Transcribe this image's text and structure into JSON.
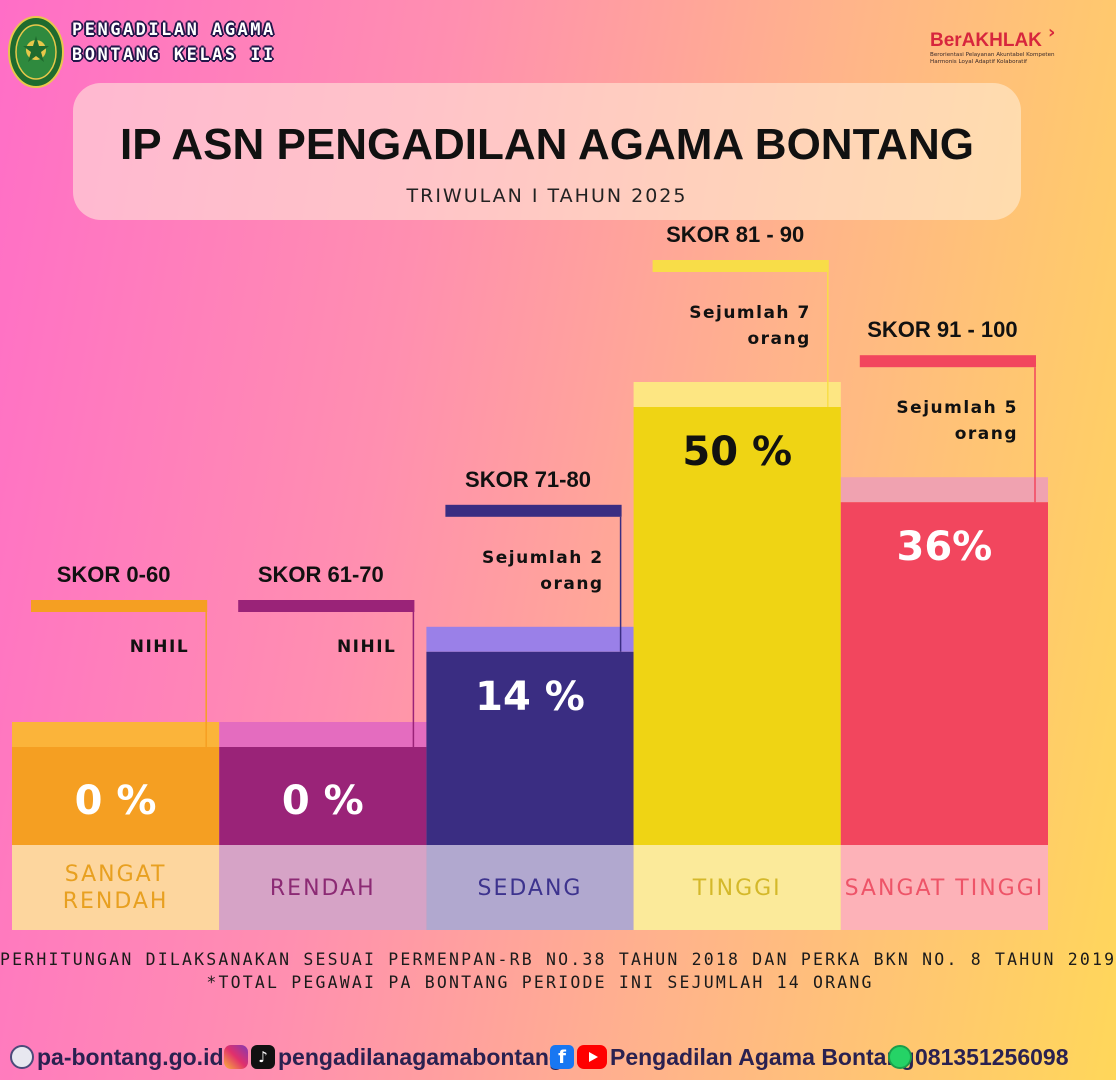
{
  "header": {
    "org_line1": "PENGADILAN AGAMA",
    "org_line2": "BONTANG KELAS II",
    "logo_icon": "court-emblem-icon",
    "berakhlak_title": "BerAKHLAK",
    "berakhlak_subtitle": "Berorientasi Pelayanan Akuntabel Kompeten Harmonis Loyal Adaptif Kolaboratif"
  },
  "title": "IP ASN PENGADILAN AGAMA BONTANG",
  "subtitle": "TRIWULAN I TAHUN 2025",
  "chart_data": {
    "type": "bar",
    "categories": [
      {
        "line1": "SANGAT",
        "line2": "RENDAH"
      },
      {
        "line1": "RENDAH",
        "line2": ""
      },
      {
        "line1": "SEDANG",
        "line2": ""
      },
      {
        "line1": "TINGGI",
        "line2": ""
      },
      {
        "line1": "SANGAT TINGGI",
        "line2": ""
      }
    ],
    "values": [
      0,
      0,
      14,
      50,
      36
    ],
    "value_labels": [
      "0 %",
      "0 %",
      "14 %",
      "50 %",
      "36%"
    ],
    "score_ranges": [
      "SKOR 0-60",
      "SKOR 61-70",
      "SKOR 71-80",
      "SKOR 81 - 90",
      "SKOR 91 - 100"
    ],
    "counts": [
      {
        "line1": "NIHIL",
        "line2": ""
      },
      {
        "line1": "NIHIL",
        "line2": ""
      },
      {
        "line1": "Sejumlah 2",
        "line2": "orang"
      },
      {
        "line1": "Sejumlah 7",
        "line2": "orang"
      },
      {
        "line1": "Sejumlah 5",
        "line2": "orang"
      }
    ],
    "colors": {
      "bar": [
        "#f59f22",
        "#9a2378",
        "#3a2d82",
        "#efd414",
        "#f2465e"
      ],
      "cap": [
        "#fbb43a",
        "#e46cbf",
        "#9a80e8",
        "#fde682",
        "#f0a2b0"
      ],
      "base": [
        "#fdd69e",
        "#d6a3c6",
        "#b1a8cf",
        "#fbea9a",
        "#fdb2b8"
      ],
      "category_text": [
        "#e8a020",
        "#8c2a74",
        "#3d338e",
        "#d4b82a",
        "#ee5468"
      ],
      "value_text": [
        "#ffffff",
        "#ffffff",
        "#ffffff",
        "#111111",
        "#ffffff"
      ],
      "flag": [
        "#f59f22",
        "#9a2378",
        "#3a2d82",
        "#f8dd48",
        "#f2465e"
      ]
    }
  },
  "notes": {
    "line1": "PERHITUNGAN DILAKSANAKAN SESUAI PERMENPAN-RB NO.38 TAHUN 2018 DAN PERKA BKN NO. 8 TAHUN 2019",
    "line2": "*TOTAL PEGAWAI PA BONTANG PERIODE INI SEJUMLAH 14 ORANG"
  },
  "footer": {
    "website": "pa-bontang.go.id",
    "instagram_tiktok": "pengadilanagamabontang",
    "facebook_youtube": "Pengadilan Agama Bontang",
    "whatsapp": "081351256098",
    "icons": [
      "globe-icon",
      "instagram-icon",
      "tiktok-icon",
      "facebook-icon",
      "youtube-icon",
      "whatsapp-icon"
    ]
  }
}
